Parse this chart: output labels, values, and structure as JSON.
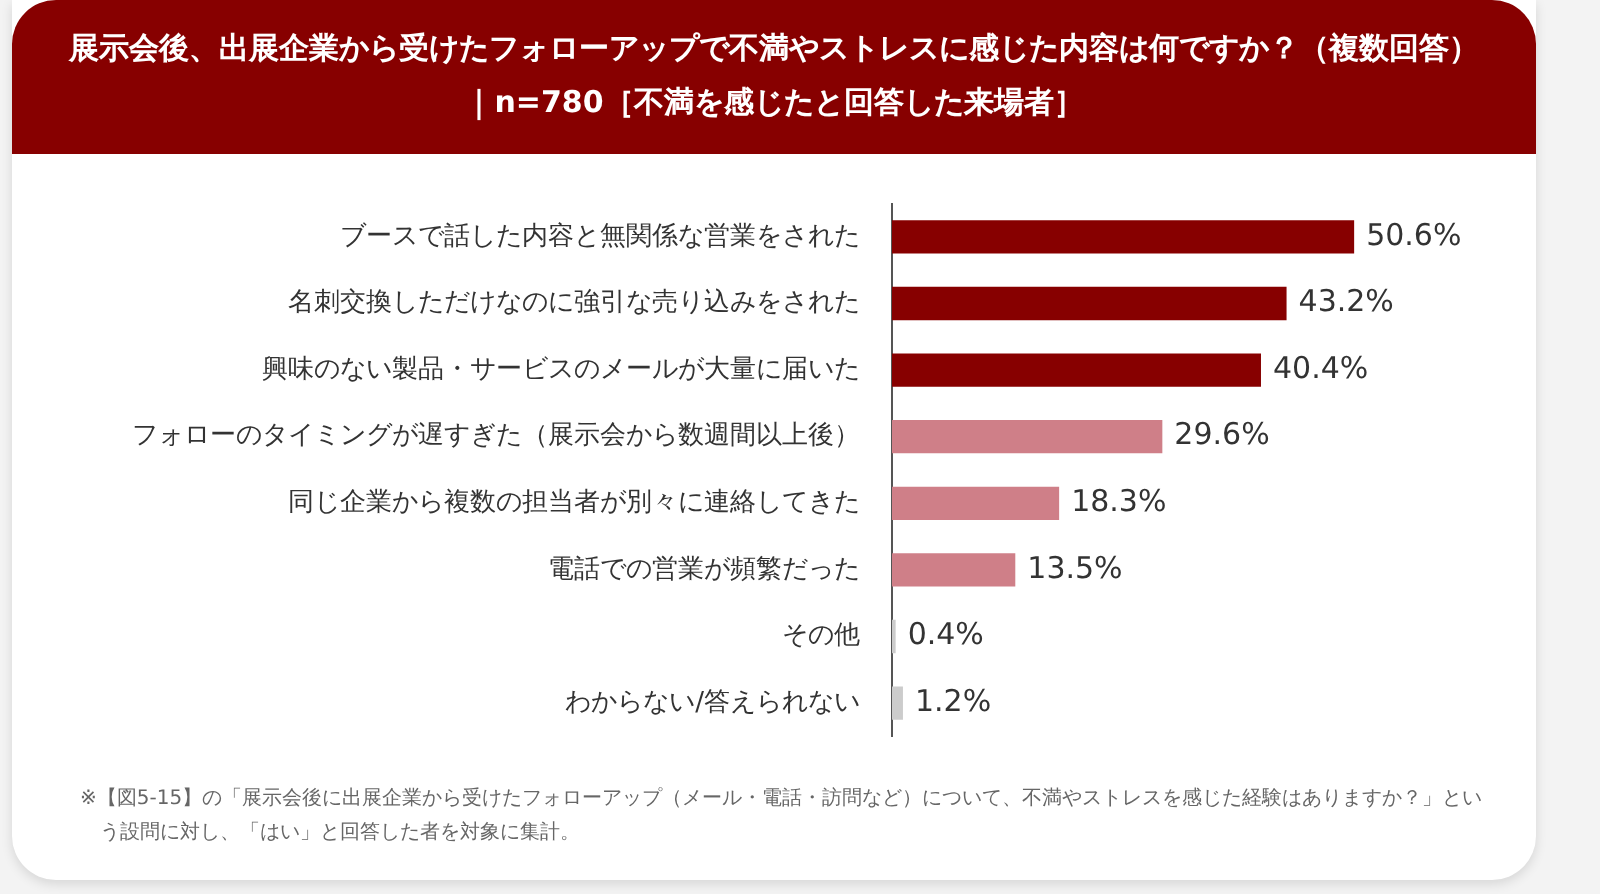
{
  "chart_data": {
    "type": "bar",
    "orientation": "horizontal",
    "title": "展示会後、出展企業から受けたフォローアップで不満やストレスに感じた内容は何ですか？（複数回答）",
    "subtitle": "｜n=780［不満を感じたと回答した来場者］",
    "categories": [
      "ブースで話した内容と無関係な営業をされた",
      "名刺交換しただけなのに強引な売り込みをされた",
      "興味のない製品・サービスのメールが大量に届いた",
      "フォローのタイミングが遅すぎた（展示会から数週間以上後）",
      "同じ企業から複数の担当者が別々に連絡してきた",
      "電話での営業が頻繁だった",
      "その他",
      "わからない/答えられない"
    ],
    "values": [
      50.6,
      43.2,
      40.4,
      29.6,
      18.3,
      13.5,
      0.4,
      1.2
    ],
    "value_labels": [
      "50.6%",
      "43.2%",
      "40.4%",
      "29.6%",
      "18.3%",
      "13.5%",
      "0.4%",
      "1.2%"
    ],
    "colors": [
      "#870000",
      "#870000",
      "#870000",
      "#cf7f88",
      "#cf7f88",
      "#cf7f88",
      "#cccccc",
      "#cccccc"
    ],
    "tick_labels": "y",
    "legend": false,
    "annotations": [
      "※【図5-15】の「展示会後に出展企業から受けたフォローアップ（メール・電話・訪問など）について、不満やストレスを感じた経験はありますか？」という設問に対し、「はい」と回答した者を対象に集計。"
    ]
  }
}
